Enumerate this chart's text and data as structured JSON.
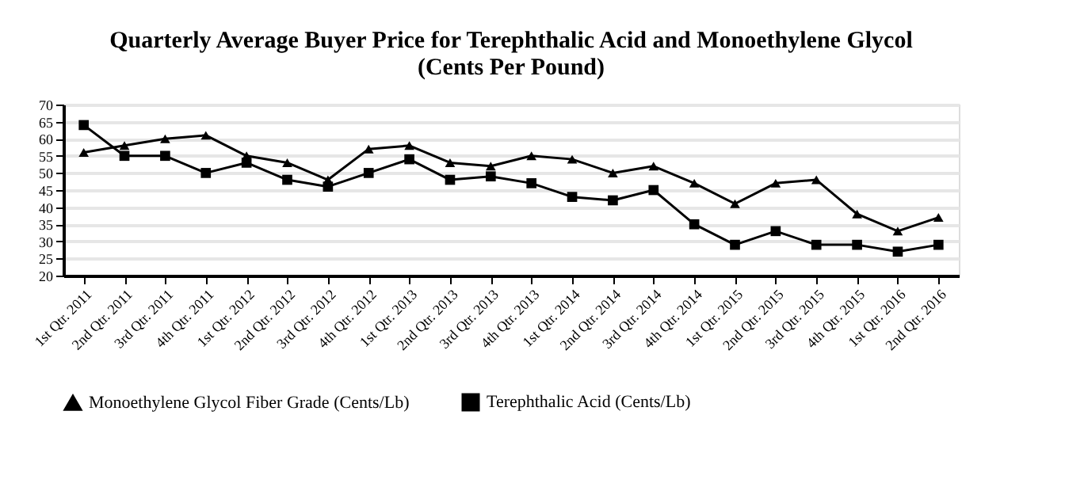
{
  "chart_data": {
    "type": "line",
    "title": [
      "Quarterly Average Buyer Price for Terephthalic Acid and Monoethylene Glycol",
      "(Cents Per Pound)"
    ],
    "categories": [
      "1st Qtr. 2011",
      "2nd Qtr. 2011",
      "3rd Qtr. 2011",
      "4th Qtr. 2011",
      "1st Qtr. 2012",
      "2nd Qtr. 2012",
      "3rd Qtr. 2012",
      "4th Qtr. 2012",
      "1st Qtr. 2013",
      "2nd Qtr. 2013",
      "3rd Qtr. 2013",
      "4th Qtr. 2013",
      "1st Qtr. 2014",
      "2nd Qtr. 2014",
      "3rd Qtr. 2014",
      "4th Qtr. 2014",
      "1st Qtr. 2015",
      "2nd Qtr. 2015",
      "3rd Qtr. 2015",
      "4th Qtr. 2015",
      "1st Qtr. 2016",
      "2nd Qtr. 2016"
    ],
    "series": [
      {
        "name": "Monoethylene Glycol Fiber Grade (Cents/Lb)",
        "color": "#000000",
        "marker": "triangle",
        "values": [
          56,
          58,
          60,
          61,
          55,
          53,
          48,
          57,
          58,
          53,
          52,
          55,
          54,
          50,
          52,
          47,
          41,
          47,
          48,
          38,
          33,
          37
        ]
      },
      {
        "name": "Terephthalic Acid (Cents/Lb)",
        "color": "#000000",
        "marker": "square",
        "values": [
          64,
          55,
          55,
          50,
          53,
          48,
          46,
          50,
          54,
          48,
          49,
          47,
          43,
          42,
          45,
          35,
          29,
          33,
          29,
          29,
          27,
          29
        ]
      }
    ],
    "ylim": [
      20,
      70
    ],
    "yticks": [
      20,
      25,
      30,
      35,
      40,
      45,
      50,
      55,
      60,
      65,
      70
    ],
    "grid": "y",
    "legend": "bottom",
    "line_style": "solid"
  }
}
